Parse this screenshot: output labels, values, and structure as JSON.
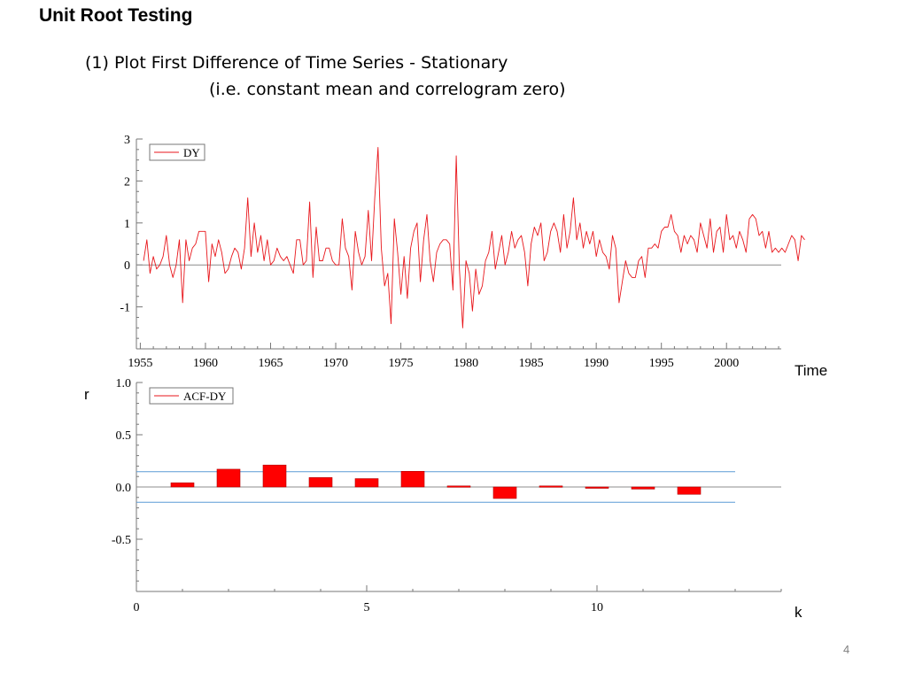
{
  "slide": {
    "title": "Unit Root Testing",
    "subtitle_line1": "(1) Plot First Difference of Time Series - Stationary",
    "subtitle_line2": "(i.e. constant mean and correlogram zero)",
    "page_number": "4"
  },
  "colors": {
    "series": "#e8161b",
    "bar_fill": "#ff0000",
    "bar_edge": "#b00000",
    "band": "#5b9bd5",
    "zero_line": "#8c8c8c",
    "axis": "#777777"
  },
  "chart_data": [
    {
      "type": "line",
      "title": "",
      "xlabel": "Time",
      "ylabel": "",
      "legend": "DY",
      "legend_position": "top-left",
      "xlim": [
        1954.7,
        2004.2
      ],
      "ylim": [
        -2.0,
        3.0
      ],
      "x_ticks": [
        1955,
        1960,
        1965,
        1970,
        1975,
        1980,
        1985,
        1990,
        1995,
        2000
      ],
      "x_tick_labels": [
        "1955",
        "1960",
        "1965",
        "1970",
        "1975",
        "1980",
        "1985",
        "1990",
        "1995",
        "2000"
      ],
      "y_ticks": [
        -1,
        0,
        1,
        2,
        3
      ],
      "y_tick_labels": [
        "-1",
        "0",
        "1",
        "2",
        "3"
      ],
      "reference_line": 0,
      "x_start": 1955.25,
      "x_step": 0.25,
      "series": [
        {
          "name": "DY",
          "values": [
            0.1,
            0.6,
            -0.2,
            0.2,
            -0.1,
            0.0,
            0.2,
            0.7,
            0.0,
            -0.3,
            0.0,
            0.6,
            -0.9,
            0.6,
            0.1,
            0.4,
            0.5,
            0.8,
            0.8,
            0.8,
            -0.4,
            0.5,
            0.2,
            0.6,
            0.3,
            -0.2,
            -0.1,
            0.2,
            0.4,
            0.3,
            -0.1,
            0.4,
            1.6,
            0.2,
            1.0,
            0.3,
            0.7,
            0.1,
            0.6,
            0.0,
            0.1,
            0.4,
            0.2,
            0.1,
            0.2,
            0.0,
            -0.2,
            0.6,
            0.6,
            0.0,
            0.1,
            1.5,
            -0.3,
            0.9,
            0.1,
            0.1,
            0.4,
            0.4,
            0.1,
            0.0,
            0.0,
            1.1,
            0.4,
            0.2,
            -0.6,
            0.8,
            0.3,
            0.0,
            0.2,
            1.3,
            0.1,
            1.6,
            2.8,
            0.4,
            -0.5,
            -0.2,
            -1.4,
            1.1,
            0.3,
            -0.7,
            0.2,
            -0.8,
            0.4,
            0.8,
            1.0,
            -0.4,
            0.6,
            1.2,
            0.1,
            -0.4,
            0.3,
            0.5,
            0.6,
            0.6,
            0.5,
            -0.6,
            2.6,
            -0.1,
            -1.5,
            0.1,
            -0.2,
            -1.1,
            -0.1,
            -0.7,
            -0.5,
            0.1,
            0.3,
            0.8,
            -0.1,
            0.3,
            0.7,
            0.0,
            0.3,
            0.8,
            0.4,
            0.6,
            0.7,
            0.3,
            -0.5,
            0.5,
            0.9,
            0.7,
            1.0,
            0.1,
            0.3,
            0.8,
            1.0,
            0.8,
            0.3,
            1.2,
            0.4,
            0.8,
            1.6,
            0.6,
            1.0,
            0.4,
            0.8,
            0.5,
            0.8,
            0.2,
            0.6,
            0.3,
            0.2,
            -0.1,
            0.7,
            0.4,
            -0.9,
            -0.4,
            0.1,
            -0.2,
            -0.3,
            -0.3,
            0.1,
            0.2,
            -0.3,
            0.4,
            0.4,
            0.5,
            0.4,
            0.8,
            0.9,
            0.9,
            1.2,
            0.8,
            0.7,
            0.3,
            0.7,
            0.5,
            0.7,
            0.6,
            0.3,
            1.0,
            0.7,
            0.4,
            1.1,
            0.3,
            0.8,
            0.9,
            0.3,
            1.2,
            0.6,
            0.7,
            0.4,
            0.8,
            0.6,
            0.3,
            1.1,
            1.2,
            1.1,
            0.7,
            0.8,
            0.4,
            0.8,
            0.3,
            0.4,
            0.3,
            0.4,
            0.3,
            0.5,
            0.7,
            0.6,
            0.1,
            0.7,
            0.6
          ]
        }
      ]
    },
    {
      "type": "bar",
      "title": "",
      "xlabel": "k",
      "ylabel": "r",
      "legend": "ACF-DY",
      "legend_position": "top-left",
      "xlim": [
        0,
        14
      ],
      "ylim": [
        -1.0,
        1.0
      ],
      "x_ticks": [
        0,
        5,
        10
      ],
      "x_tick_labels": [
        "0",
        "5",
        "10"
      ],
      "y_ticks": [
        -0.5,
        0.0,
        0.5,
        1.0
      ],
      "y_tick_labels": [
        "-0.5",
        "0.0",
        "0.5",
        "1.0"
      ],
      "categories": [
        1,
        2,
        3,
        4,
        5,
        6,
        7,
        8,
        9,
        10,
        11,
        12
      ],
      "values": [
        0.04,
        0.17,
        0.21,
        0.09,
        0.08,
        0.15,
        0.01,
        -0.11,
        0.01,
        -0.01,
        -0.02,
        -0.07
      ],
      "confidence_band": 0.146,
      "band_xlim": [
        0,
        13
      ]
    }
  ]
}
